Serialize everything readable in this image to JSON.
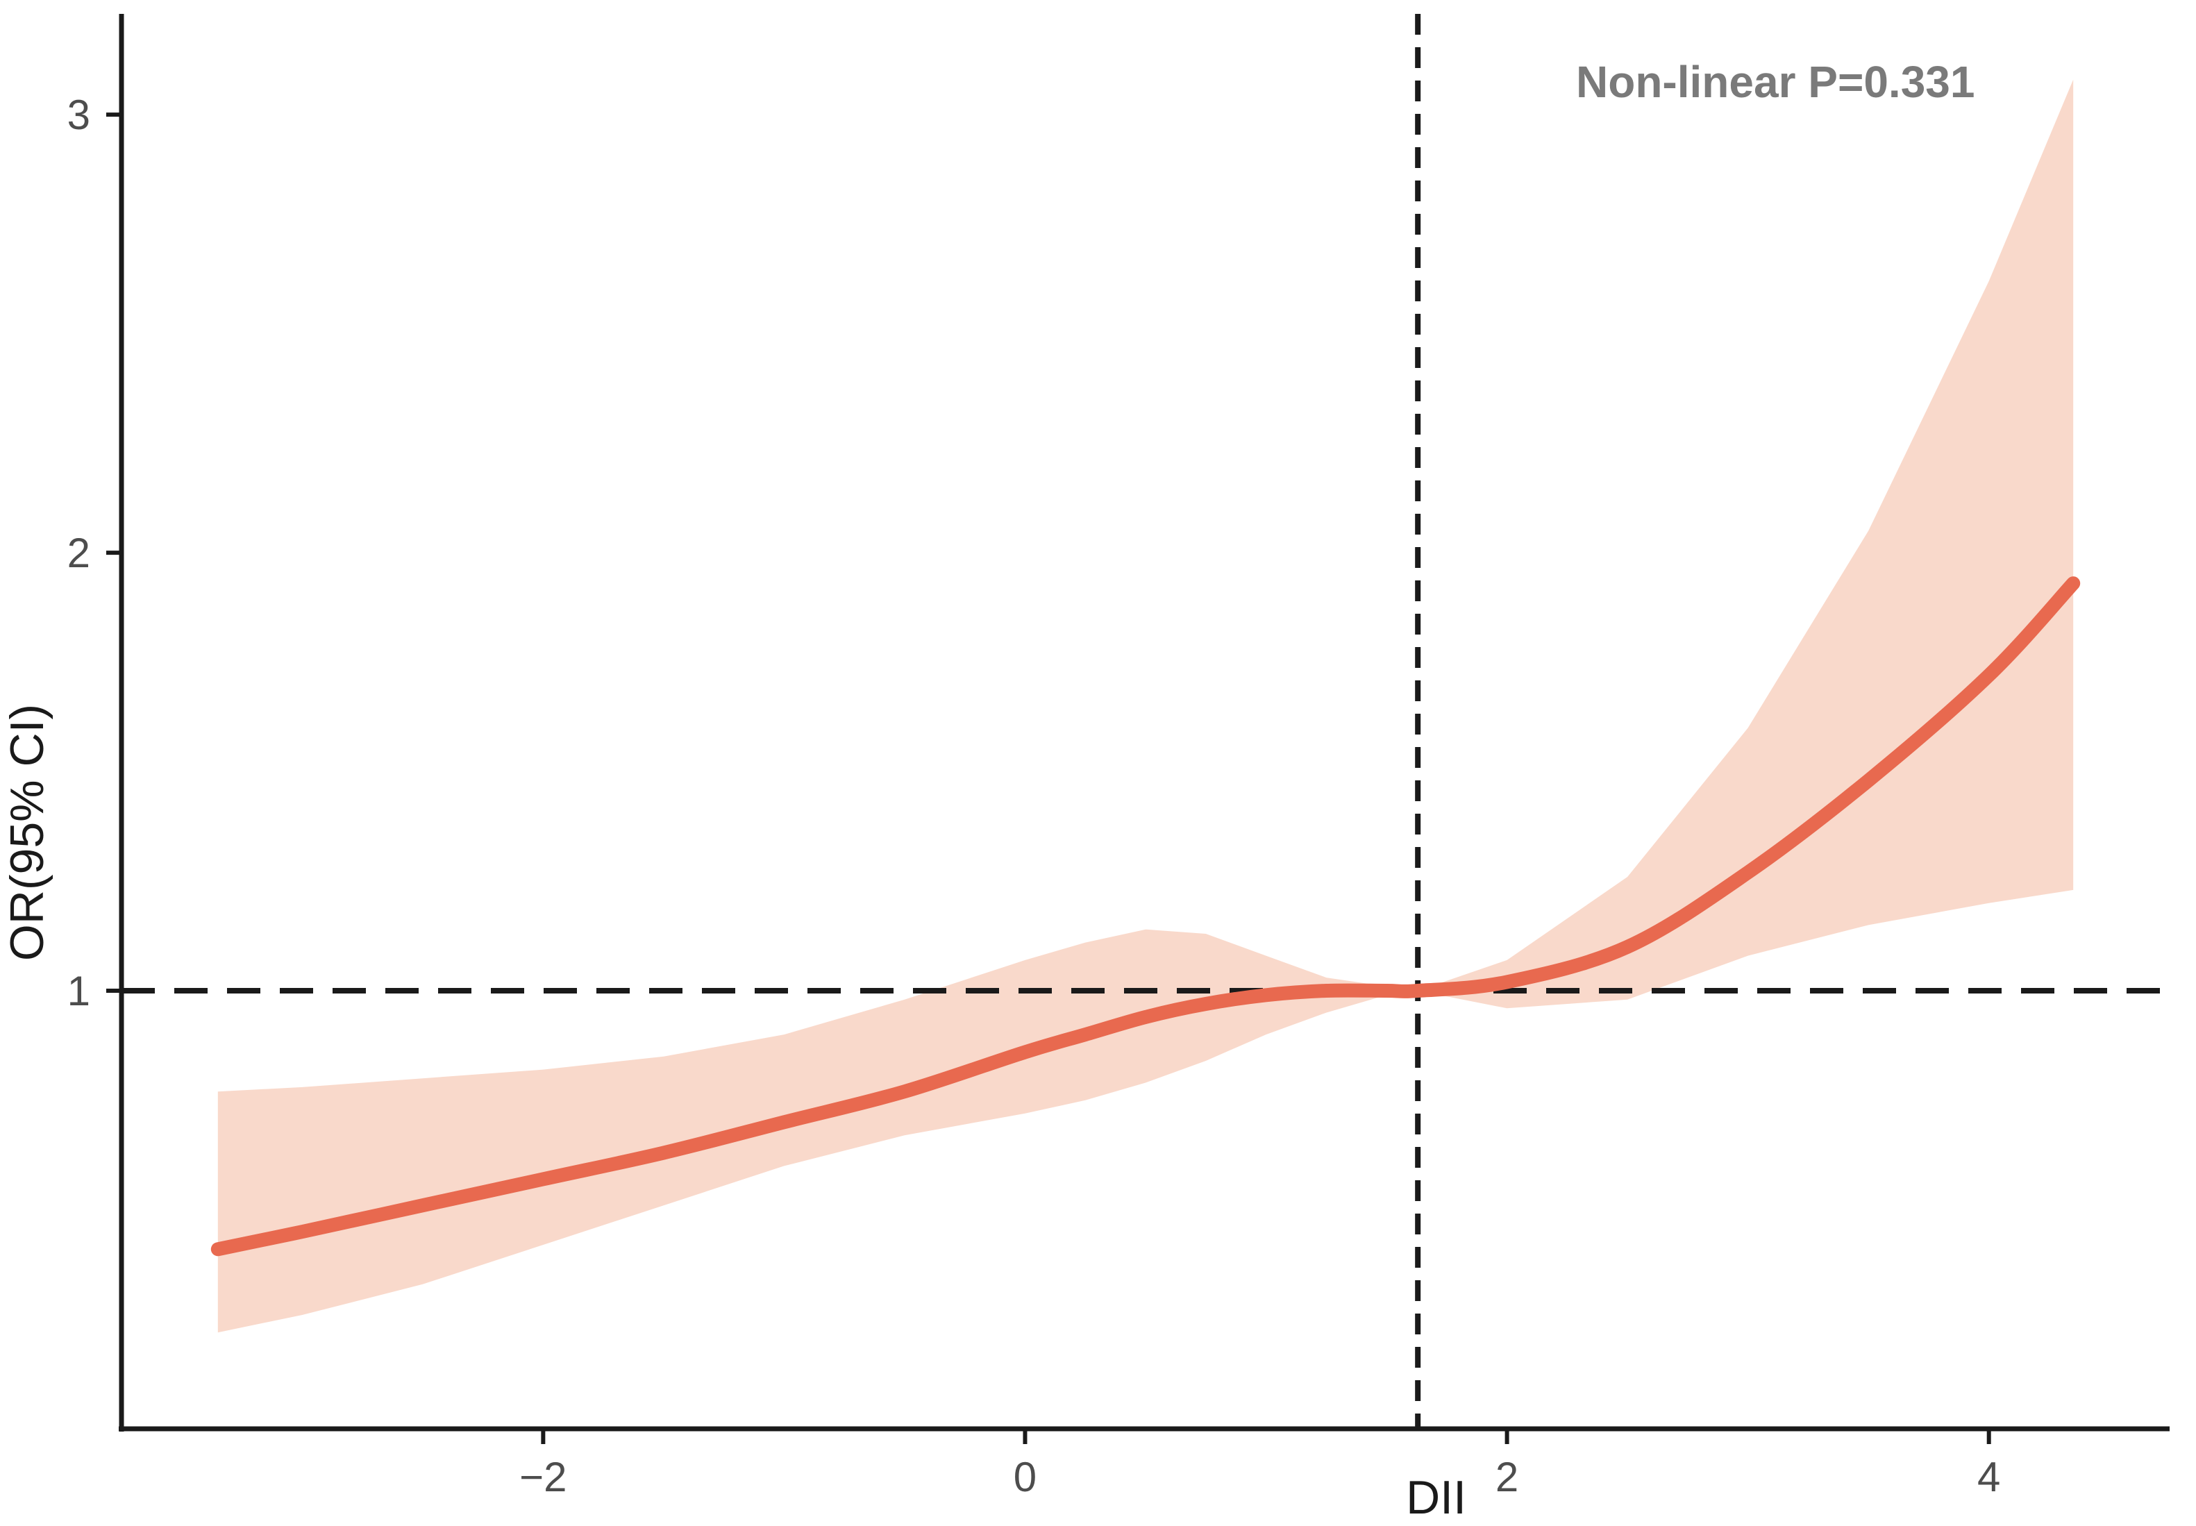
{
  "chart_data": {
    "type": "line",
    "xlabel": "DII",
    "ylabel": "OR(95% CI)",
    "annotation": "Non-linear P=0.331",
    "xlim": [
      -3.75,
      4.75
    ],
    "ylim": [
      0.0,
      3.23
    ],
    "x_ticks": [
      -2,
      0,
      2,
      4
    ],
    "x_tick_labels": [
      "−2",
      "0",
      "2",
      "4"
    ],
    "y_ticks": [
      1,
      2,
      3
    ],
    "y_tick_labels": [
      "1",
      "2",
      "3"
    ],
    "reference_lines": {
      "horizontal_y": 1,
      "vertical_x": 1.63
    },
    "grid": false,
    "colors": {
      "line": "#e8694f",
      "band": "#f9d9cb",
      "reference": "#1a1a1a"
    },
    "series": [
      {
        "x": [
          -3.35,
          -3.0,
          -2.5,
          -2.0,
          -1.5,
          -1.0,
          -0.5,
          0.0,
          0.25,
          0.5,
          0.75,
          1.0,
          1.25,
          1.5,
          1.63,
          2.0,
          2.5,
          3.0,
          3.5,
          4.0,
          4.35
        ],
        "y": [
          0.41,
          0.45,
          0.51,
          0.57,
          0.63,
          0.7,
          0.77,
          0.86,
          0.9,
          0.94,
          0.97,
          0.99,
          1.0,
          1.0,
          1.0,
          1.02,
          1.1,
          1.27,
          1.48,
          1.72,
          1.93
        ],
        "lower": [
          0.22,
          0.26,
          0.33,
          0.42,
          0.51,
          0.6,
          0.67,
          0.72,
          0.75,
          0.79,
          0.84,
          0.9,
          0.95,
          0.99,
          1.0,
          0.96,
          0.98,
          1.08,
          1.15,
          1.2,
          1.23
        ],
        "upper": [
          0.77,
          0.78,
          0.8,
          0.82,
          0.85,
          0.9,
          0.98,
          1.07,
          1.11,
          1.14,
          1.13,
          1.08,
          1.03,
          1.01,
          1.0,
          1.07,
          1.26,
          1.6,
          2.05,
          2.62,
          3.08
        ]
      }
    ]
  }
}
